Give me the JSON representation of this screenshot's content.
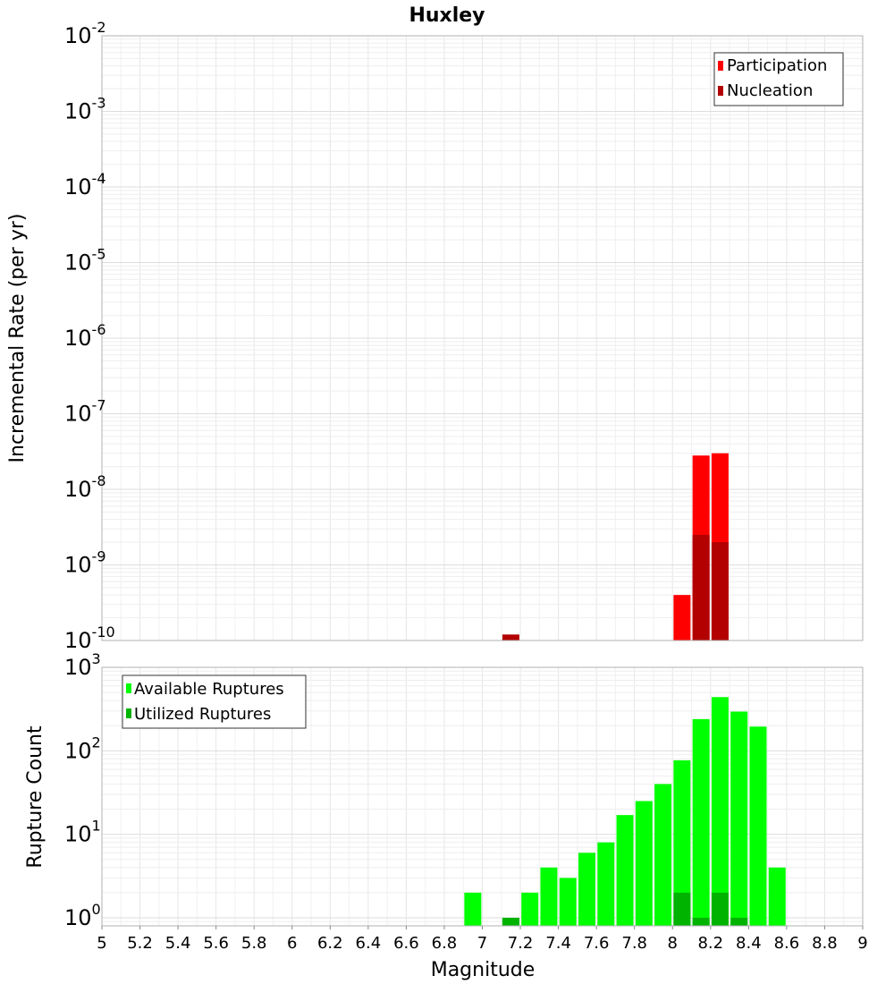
{
  "chart_data": [
    {
      "type": "bar",
      "title": "Huxley",
      "xlabel": "",
      "ylabel": "Incremental Rate (per yr)",
      "xlim": [
        5,
        9
      ],
      "ylim": [
        1e-10,
        0.01
      ],
      "yscale": "log",
      "grid": true,
      "legend_position": "top-right",
      "ytick_exponents": [
        "-2",
        "-3",
        "-4",
        "-5",
        "-6",
        "-7",
        "-8",
        "-9",
        "-10"
      ],
      "ytick_base": "10",
      "series": [
        {
          "name": "Participation",
          "color": "#ff0000",
          "x": [
            8.05,
            8.15,
            8.25
          ],
          "values": [
            4e-10,
            2.8e-08,
            3e-08
          ]
        },
        {
          "name": "Nucleation",
          "color": "#b30000",
          "x": [
            7.15,
            8.15,
            8.25
          ],
          "values": [
            1.2e-10,
            2.5e-09,
            2e-09
          ]
        }
      ]
    },
    {
      "type": "bar",
      "title": "",
      "xlabel": "Magnitude",
      "ylabel": "Rupture Count",
      "xlim": [
        5,
        9
      ],
      "ylim": [
        0.8,
        1000
      ],
      "yscale": "log",
      "grid": true,
      "legend_position": "top-left",
      "xticks": [
        "5",
        "5.2",
        "5.4",
        "5.6",
        "5.8",
        "6",
        "6.2",
        "6.4",
        "6.6",
        "6.8",
        "7",
        "7.2",
        "7.4",
        "7.6",
        "7.8",
        "8",
        "8.2",
        "8.4",
        "8.6",
        "8.8",
        "9"
      ],
      "ytick_exponents": [
        "3",
        "2",
        "1",
        "0"
      ],
      "ytick_base": "10",
      "series": [
        {
          "name": "Available Ruptures",
          "color": "#00ff00",
          "x": [
            6.95,
            7.15,
            7.25,
            7.35,
            7.45,
            7.55,
            7.65,
            7.75,
            7.85,
            7.95,
            8.05,
            8.15,
            8.25,
            8.35,
            8.45,
            8.55
          ],
          "values": [
            2,
            1,
            2,
            4,
            3,
            6,
            8,
            17,
            25,
            40,
            77,
            240,
            440,
            295,
            195,
            4
          ]
        },
        {
          "name": "Utilized Ruptures",
          "color": "#00b300",
          "x": [
            7.15,
            8.05,
            8.15,
            8.25,
            8.35
          ],
          "values": [
            1,
            2,
            1,
            2,
            1
          ]
        }
      ]
    }
  ]
}
